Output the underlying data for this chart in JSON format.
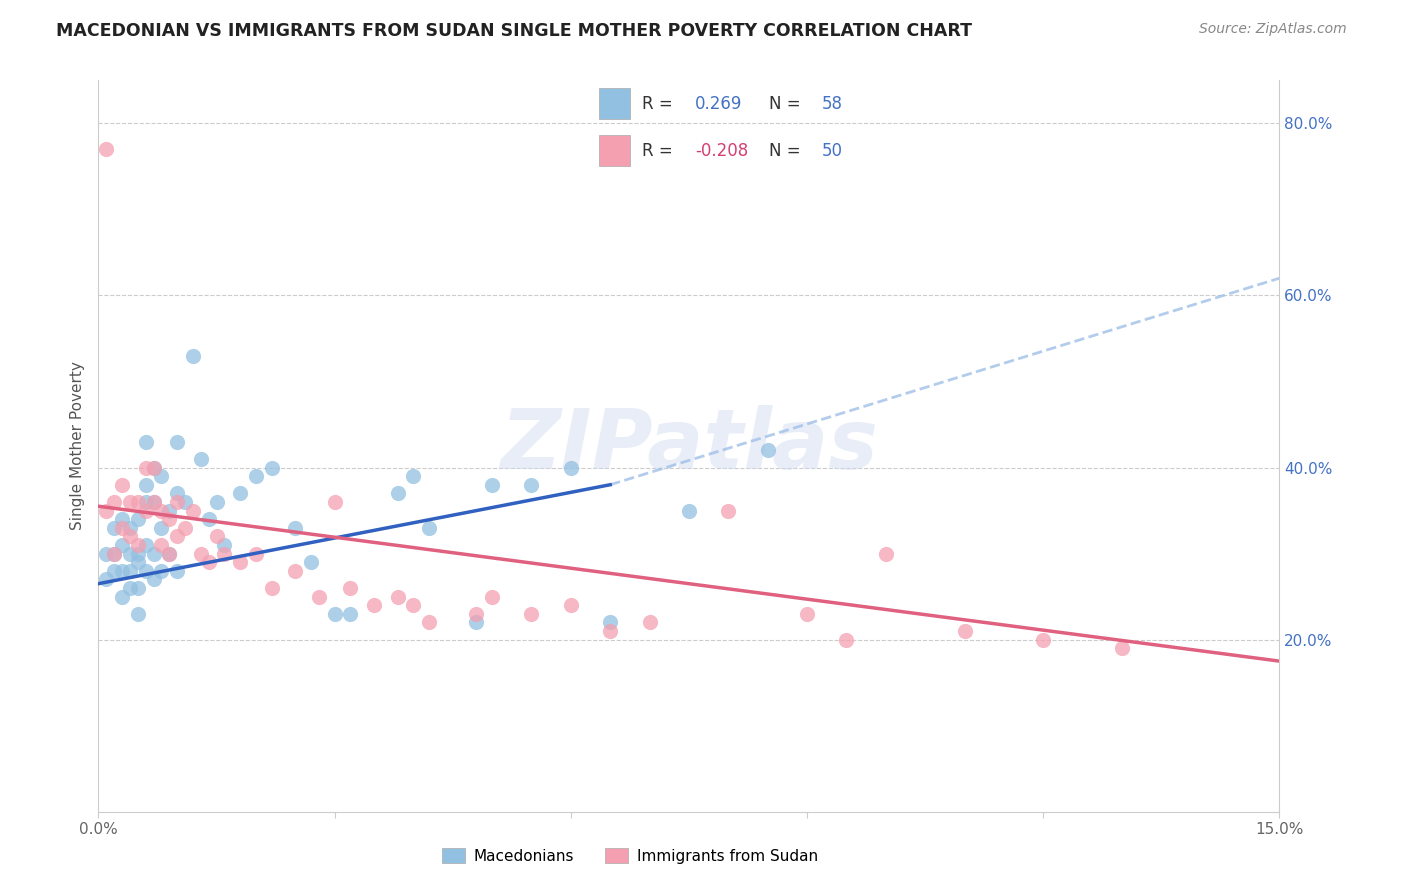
{
  "title": "MACEDONIAN VS IMMIGRANTS FROM SUDAN SINGLE MOTHER POVERTY CORRELATION CHART",
  "source": "Source: ZipAtlas.com",
  "ylabel": "Single Mother Poverty",
  "xlim": [
    0.0,
    0.15
  ],
  "ylim": [
    0.0,
    0.85
  ],
  "xticks": [
    0.0,
    0.03,
    0.06,
    0.09,
    0.12,
    0.15
  ],
  "xticklabels": [
    "0.0%",
    "",
    "",
    "",
    "",
    "15.0%"
  ],
  "yticks_right": [
    0.2,
    0.4,
    0.6,
    0.8
  ],
  "ytick_right_labels": [
    "20.0%",
    "40.0%",
    "60.0%",
    "80.0%"
  ],
  "macedonian_color": "#92c0e0",
  "sudan_color": "#f4a0b0",
  "macedonian_line_color": "#3060c0",
  "sudan_line_color": "#e06080",
  "dash_color": "#a0c0e8",
  "legend_label_mac": "Macedonians",
  "legend_label_sud": "Immigrants from Sudan",
  "watermark": "ZIPatlas",
  "mac_line_x0": 0.0,
  "mac_line_y0": 0.265,
  "mac_line_x1": 0.065,
  "mac_line_y1": 0.38,
  "sud_line_x0": 0.0,
  "sud_line_y0": 0.355,
  "sud_line_x1": 0.15,
  "sud_line_y1": 0.175,
  "dash_line_x0": 0.065,
  "dash_line_y0": 0.38,
  "dash_line_x1": 0.15,
  "dash_line_y1": 0.62,
  "macedonian_x": [
    0.001,
    0.001,
    0.002,
    0.002,
    0.002,
    0.003,
    0.003,
    0.003,
    0.003,
    0.004,
    0.004,
    0.004,
    0.004,
    0.005,
    0.005,
    0.005,
    0.005,
    0.005,
    0.006,
    0.006,
    0.006,
    0.006,
    0.006,
    0.007,
    0.007,
    0.007,
    0.007,
    0.008,
    0.008,
    0.008,
    0.009,
    0.009,
    0.01,
    0.01,
    0.01,
    0.011,
    0.012,
    0.013,
    0.014,
    0.015,
    0.016,
    0.018,
    0.02,
    0.022,
    0.025,
    0.027,
    0.03,
    0.032,
    0.038,
    0.04,
    0.042,
    0.048,
    0.05,
    0.055,
    0.06,
    0.065,
    0.075,
    0.085
  ],
  "macedonian_y": [
    0.3,
    0.27,
    0.33,
    0.3,
    0.28,
    0.34,
    0.31,
    0.28,
    0.25,
    0.3,
    0.33,
    0.28,
    0.26,
    0.3,
    0.34,
    0.29,
    0.26,
    0.23,
    0.38,
    0.43,
    0.36,
    0.31,
    0.28,
    0.4,
    0.36,
    0.3,
    0.27,
    0.39,
    0.33,
    0.28,
    0.35,
    0.3,
    0.43,
    0.37,
    0.28,
    0.36,
    0.53,
    0.41,
    0.34,
    0.36,
    0.31,
    0.37,
    0.39,
    0.4,
    0.33,
    0.29,
    0.23,
    0.23,
    0.37,
    0.39,
    0.33,
    0.22,
    0.38,
    0.38,
    0.4,
    0.22,
    0.35,
    0.42
  ],
  "sudan_x": [
    0.001,
    0.001,
    0.002,
    0.002,
    0.003,
    0.003,
    0.004,
    0.004,
    0.005,
    0.005,
    0.006,
    0.006,
    0.007,
    0.007,
    0.008,
    0.008,
    0.009,
    0.009,
    0.01,
    0.01,
    0.011,
    0.012,
    0.013,
    0.014,
    0.015,
    0.016,
    0.018,
    0.02,
    0.022,
    0.025,
    0.028,
    0.03,
    0.032,
    0.035,
    0.038,
    0.04,
    0.042,
    0.048,
    0.05,
    0.055,
    0.06,
    0.065,
    0.07,
    0.08,
    0.09,
    0.095,
    0.1,
    0.11,
    0.12,
    0.13
  ],
  "sudan_y": [
    0.77,
    0.35,
    0.36,
    0.3,
    0.38,
    0.33,
    0.36,
    0.32,
    0.36,
    0.31,
    0.4,
    0.35,
    0.4,
    0.36,
    0.35,
    0.31,
    0.34,
    0.3,
    0.36,
    0.32,
    0.33,
    0.35,
    0.3,
    0.29,
    0.32,
    0.3,
    0.29,
    0.3,
    0.26,
    0.28,
    0.25,
    0.36,
    0.26,
    0.24,
    0.25,
    0.24,
    0.22,
    0.23,
    0.25,
    0.23,
    0.24,
    0.21,
    0.22,
    0.35,
    0.23,
    0.2,
    0.3,
    0.21,
    0.2,
    0.19
  ]
}
